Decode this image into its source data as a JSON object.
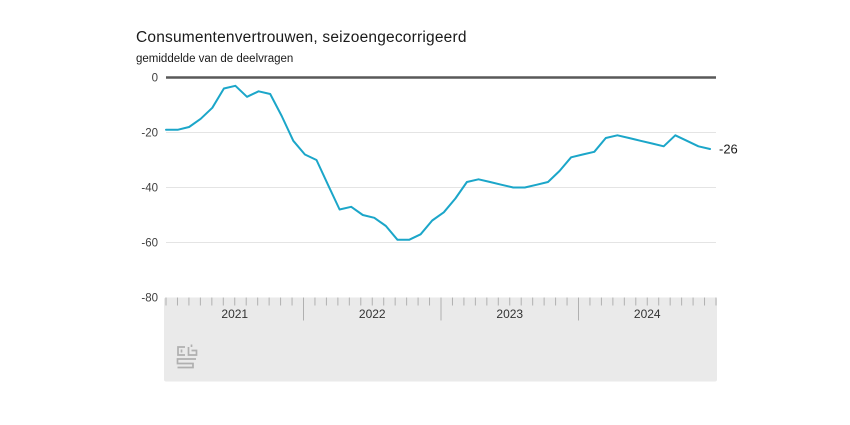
{
  "title": "Consumentenvertrouwen, seizoengecorrigeerd",
  "subtitle": "gemiddelde van de deelvragen",
  "logo": "cbs-logo",
  "colors": {
    "line": "#1ba6c9",
    "zero_line": "#595959",
    "grid": "#e4e4e4",
    "axis_band": "#eaeaea",
    "tick": "#b0b0b0",
    "year_label": "#333333",
    "axis_label": "#404040",
    "end_label": "#1a1a1a",
    "logo": "#b0b0b0"
  },
  "chart_data": {
    "type": "line",
    "title": "Consumentenvertrouwen, seizoengecorrigeerd",
    "subtitle": "gemiddelde van de deelvragen",
    "x_start": "2021-01",
    "x_frequency": "monthly",
    "x_tick_labels": [
      "2021",
      "2022",
      "2023",
      "2024"
    ],
    "y_ticks": [
      0,
      -20,
      -40,
      -60,
      -80
    ],
    "ylim": [
      -80,
      0
    ],
    "grid": "horizontal",
    "legend": "none",
    "last_value_label": "-26",
    "series": [
      {
        "name": "Consumentenvertrouwen",
        "values": [
          -19,
          -19,
          -18,
          -15,
          -11,
          -4,
          -3,
          -7,
          -5,
          -6,
          -14,
          -23,
          -28,
          -30,
          -39,
          -48,
          -47,
          -50,
          -51,
          -54,
          -59,
          -59,
          -57,
          -52,
          -49,
          -44,
          -38,
          -37,
          -38,
          -39,
          -40,
          -40,
          -39,
          -38,
          -34,
          -29,
          -28,
          -27,
          -22,
          -21,
          -22,
          -23,
          -24,
          -25,
          -21,
          -23,
          -25,
          -26
        ]
      }
    ]
  }
}
